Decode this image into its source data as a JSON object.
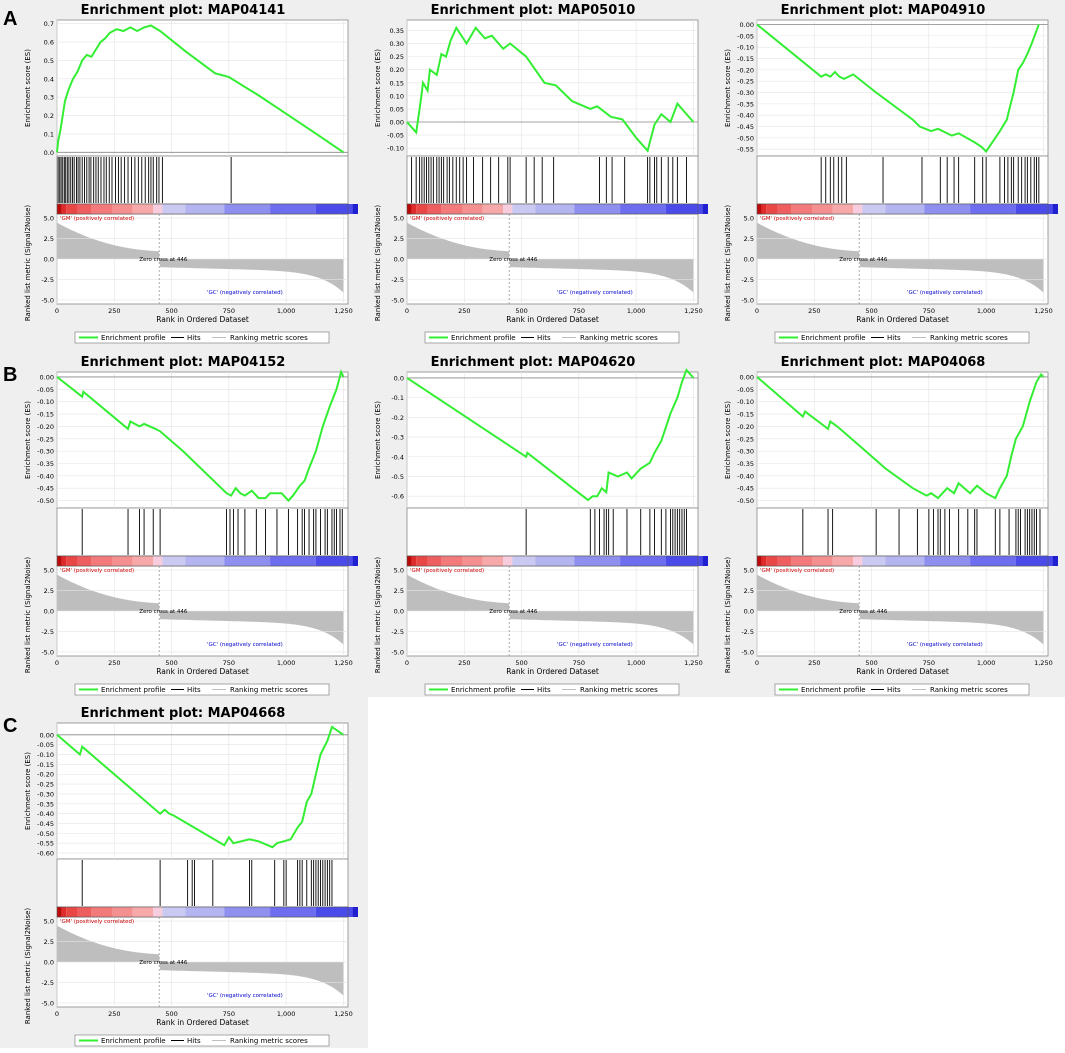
{
  "panel_letters": [
    "A",
    "B",
    "C"
  ],
  "common": {
    "es_ylabel": "Enrichment score (ES)",
    "metric_ylabel": "Ranked list metric (Signal2Noise)",
    "xlabel": "Rank in Ordered Dataset",
    "x_ticks": [
      "0",
      "250",
      "500",
      "750",
      "1,000",
      "1,250"
    ],
    "x_tick_values": [
      0,
      250,
      500,
      750,
      1000,
      1250
    ],
    "x_range": [
      0,
      1270
    ],
    "metric_ticks": [
      "5.0",
      "2.5",
      "0.0",
      "-2.5",
      "-5.0"
    ],
    "metric_tick_values": [
      5,
      2.5,
      0,
      -2.5,
      -5
    ],
    "metric_range": [
      -5.5,
      5.5
    ],
    "zero_cross_text": "Zero cross at 446",
    "zero_cross": 446,
    "pos_label": "'GM' (positively correlated)",
    "neg_label": "'GC' (negatively correlated)",
    "legend": [
      "Enrichment profile",
      "Hits",
      "Ranking metric scores"
    ],
    "colors": {
      "profile": "#33ee33",
      "hits": "#000000",
      "metric": "#bebebe",
      "pos": "#cc0000",
      "neg": "#0000cc"
    },
    "heat_colors": [
      "#ba0a0a",
      "#e02b2b",
      "#e94646",
      "#ef5e5e",
      "#f27a7a",
      "#f49090",
      "#f7a9a9",
      "#f7cdde",
      "#c9c9f2",
      "#b4b4f0",
      "#8f8ff0",
      "#6d6df0",
      "#4b4bea",
      "#2020d0",
      "#3b0099"
    ],
    "heat_stops": [
      0,
      20,
      40,
      90,
      150,
      240,
      330,
      420,
      460,
      560,
      730,
      930,
      1130,
      1290,
      1330,
      1370
    ]
  },
  "chart_data": [
    {
      "type": "line",
      "title": "Enrichment plot: MAP04141",
      "es_ticks": [
        0,
        0.1,
        0.2,
        0.3,
        0.4,
        0.5,
        0.6,
        0.7
      ],
      "es_ticklabels": [
        "0.0",
        "0.1",
        "0.2",
        "0.3",
        "0.4",
        "0.5",
        "0.6",
        "0.7"
      ],
      "es_range": [
        -0.02,
        0.72
      ],
      "es_curve": [
        [
          0,
          0
        ],
        [
          5,
          0.06
        ],
        [
          15,
          0.12
        ],
        [
          25,
          0.2
        ],
        [
          35,
          0.28
        ],
        [
          50,
          0.34
        ],
        [
          70,
          0.4
        ],
        [
          90,
          0.44
        ],
        [
          110,
          0.5
        ],
        [
          130,
          0.53
        ],
        [
          150,
          0.52
        ],
        [
          170,
          0.56
        ],
        [
          190,
          0.6
        ],
        [
          210,
          0.62
        ],
        [
          230,
          0.65
        ],
        [
          260,
          0.67
        ],
        [
          290,
          0.66
        ],
        [
          320,
          0.68
        ],
        [
          350,
          0.66
        ],
        [
          380,
          0.68
        ],
        [
          410,
          0.69
        ],
        [
          450,
          0.66
        ],
        [
          560,
          0.55
        ],
        [
          690,
          0.43
        ],
        [
          720,
          0.42
        ],
        [
          750,
          0.41
        ],
        [
          880,
          0.31
        ],
        [
          1000,
          0.21
        ],
        [
          1120,
          0.11
        ],
        [
          1250,
          0
        ]
      ],
      "hits": [
        5,
        12,
        18,
        25,
        32,
        38,
        45,
        52,
        60,
        68,
        75,
        85,
        92,
        100,
        110,
        120,
        130,
        140,
        148,
        160,
        170,
        180,
        192,
        205,
        215,
        228,
        240,
        255,
        268,
        280,
        295,
        310,
        325,
        340,
        355,
        370,
        385,
        400,
        410,
        420,
        435,
        445,
        460,
        760
      ]
    },
    {
      "type": "line",
      "title": "Enrichment plot: MAP05010",
      "es_ticks": [
        -0.1,
        -0.05,
        0,
        0.05,
        0.1,
        0.15,
        0.2,
        0.25,
        0.3,
        0.35
      ],
      "es_ticklabels": [
        "-0.10",
        "-0.05",
        "0.00",
        "0.05",
        "0.10",
        "0.15",
        "0.20",
        "0.25",
        "0.30",
        "0.35"
      ],
      "es_range": [
        -0.13,
        0.39
      ],
      "es_curve": [
        [
          0,
          0
        ],
        [
          40,
          -0.04
        ],
        [
          60,
          0.08
        ],
        [
          70,
          0.15
        ],
        [
          90,
          0.12
        ],
        [
          100,
          0.2
        ],
        [
          130,
          0.18
        ],
        [
          150,
          0.26
        ],
        [
          170,
          0.25
        ],
        [
          190,
          0.31
        ],
        [
          215,
          0.36
        ],
        [
          260,
          0.3
        ],
        [
          300,
          0.36
        ],
        [
          340,
          0.32
        ],
        [
          370,
          0.33
        ],
        [
          420,
          0.28
        ],
        [
          450,
          0.3
        ],
        [
          520,
          0.25
        ],
        [
          600,
          0.15
        ],
        [
          650,
          0.14
        ],
        [
          720,
          0.08
        ],
        [
          800,
          0.05
        ],
        [
          830,
          0.06
        ],
        [
          890,
          0.02
        ],
        [
          940,
          0.01
        ],
        [
          1000,
          -0.06
        ],
        [
          1050,
          -0.11
        ],
        [
          1080,
          -0.01
        ],
        [
          1110,
          0.03
        ],
        [
          1150,
          0.0
        ],
        [
          1180,
          0.07
        ],
        [
          1250,
          0
        ]
      ],
      "hits": [
        20,
        40,
        55,
        65,
        75,
        85,
        95,
        105,
        115,
        130,
        140,
        150,
        160,
        175,
        185,
        200,
        215,
        230,
        245,
        260,
        290,
        330,
        365,
        400,
        440,
        450,
        520,
        555,
        590,
        640,
        840,
        870,
        895,
        950,
        1050,
        1060,
        1080,
        1090,
        1110,
        1140,
        1160,
        1180,
        1220
      ]
    },
    {
      "type": "line",
      "title": "Enrichment plot: MAP04910",
      "es_ticks": [
        0,
        -0.05,
        -0.1,
        -0.15,
        -0.2,
        -0.25,
        -0.3,
        -0.35,
        -0.4,
        -0.45,
        -0.5,
        -0.55
      ],
      "es_ticklabels": [
        "0.00",
        "-0.05",
        "-0.10",
        "-0.15",
        "-0.20",
        "-0.25",
        "-0.30",
        "-0.35",
        "-0.40",
        "-0.45",
        "-0.50",
        "-0.55"
      ],
      "es_range": [
        -0.58,
        0.02
      ],
      "es_curve": [
        [
          0,
          0
        ],
        [
          280,
          -0.23
        ],
        [
          300,
          -0.22
        ],
        [
          320,
          -0.23
        ],
        [
          340,
          -0.21
        ],
        [
          360,
          -0.23
        ],
        [
          380,
          -0.24
        ],
        [
          420,
          -0.22
        ],
        [
          520,
          -0.3
        ],
        [
          680,
          -0.42
        ],
        [
          710,
          -0.45
        ],
        [
          760,
          -0.47
        ],
        [
          790,
          -0.46
        ],
        [
          850,
          -0.49
        ],
        [
          880,
          -0.48
        ],
        [
          950,
          -0.52
        ],
        [
          980,
          -0.54
        ],
        [
          1000,
          -0.56
        ],
        [
          1020,
          -0.53
        ],
        [
          1040,
          -0.5
        ],
        [
          1060,
          -0.47
        ],
        [
          1090,
          -0.42
        ],
        [
          1100,
          -0.38
        ],
        [
          1120,
          -0.3
        ],
        [
          1140,
          -0.2
        ],
        [
          1160,
          -0.17
        ],
        [
          1180,
          -0.13
        ],
        [
          1200,
          -0.08
        ],
        [
          1215,
          -0.04
        ],
        [
          1230,
          0
        ]
      ],
      "hits": [
        280,
        300,
        320,
        335,
        355,
        370,
        390,
        550,
        720,
        800,
        830,
        860,
        880,
        950,
        985,
        1000,
        1060,
        1080,
        1095,
        1110,
        1120,
        1140,
        1155,
        1170,
        1180,
        1195,
        1210,
        1220,
        1230
      ]
    },
    {
      "type": "line",
      "title": "Enrichment plot: MAP04152",
      "es_ticks": [
        0,
        -0.05,
        -0.1,
        -0.15,
        -0.2,
        -0.25,
        -0.3,
        -0.35,
        -0.4,
        -0.45,
        -0.5
      ],
      "es_ticklabels": [
        "0.00",
        "-0.05",
        "-0.10",
        "-0.15",
        "-0.20",
        "-0.25",
        "-0.30",
        "-0.35",
        "-0.40",
        "-0.45",
        "-0.50"
      ],
      "es_range": [
        -0.53,
        0.02
      ],
      "es_curve": [
        [
          0,
          0
        ],
        [
          110,
          -0.08
        ],
        [
          115,
          -0.06
        ],
        [
          310,
          -0.21
        ],
        [
          320,
          -0.18
        ],
        [
          360,
          -0.2
        ],
        [
          380,
          -0.19
        ],
        [
          430,
          -0.21
        ],
        [
          450,
          -0.22
        ],
        [
          550,
          -0.3
        ],
        [
          740,
          -0.47
        ],
        [
          760,
          -0.48
        ],
        [
          780,
          -0.45
        ],
        [
          800,
          -0.47
        ],
        [
          820,
          -0.48
        ],
        [
          850,
          -0.46
        ],
        [
          880,
          -0.49
        ],
        [
          910,
          -0.49
        ],
        [
          930,
          -0.47
        ],
        [
          980,
          -0.47
        ],
        [
          1010,
          -0.5
        ],
        [
          1030,
          -0.48
        ],
        [
          1060,
          -0.44
        ],
        [
          1080,
          -0.42
        ],
        [
          1100,
          -0.37
        ],
        [
          1130,
          -0.3
        ],
        [
          1160,
          -0.2
        ],
        [
          1190,
          -0.12
        ],
        [
          1220,
          -0.05
        ],
        [
          1240,
          0.02
        ],
        [
          1250,
          0
        ]
      ],
      "hits": [
        110,
        310,
        360,
        380,
        420,
        450,
        740,
        755,
        770,
        790,
        820,
        870,
        910,
        960,
        1010,
        1050,
        1070,
        1080,
        1100,
        1120,
        1130,
        1150,
        1170,
        1180,
        1200,
        1210,
        1220,
        1235,
        1245
      ]
    },
    {
      "type": "line",
      "title": "Enrichment plot: MAP04620",
      "es_ticks": [
        0,
        -0.1,
        -0.2,
        -0.3,
        -0.4,
        -0.5,
        -0.6
      ],
      "es_ticklabels": [
        "0.0",
        "-0.1",
        "-0.2",
        "-0.3",
        "-0.4",
        "-0.5",
        "-0.6"
      ],
      "es_range": [
        -0.66,
        0.03
      ],
      "es_curve": [
        [
          0,
          0
        ],
        [
          520,
          -0.4
        ],
        [
          525,
          -0.38
        ],
        [
          790,
          -0.62
        ],
        [
          810,
          -0.6
        ],
        [
          830,
          -0.6
        ],
        [
          850,
          -0.56
        ],
        [
          870,
          -0.58
        ],
        [
          880,
          -0.48
        ],
        [
          920,
          -0.5
        ],
        [
          960,
          -0.48
        ],
        [
          980,
          -0.51
        ],
        [
          1020,
          -0.46
        ],
        [
          1060,
          -0.43
        ],
        [
          1080,
          -0.38
        ],
        [
          1110,
          -0.32
        ],
        [
          1130,
          -0.25
        ],
        [
          1150,
          -0.18
        ],
        [
          1180,
          -0.1
        ],
        [
          1200,
          -0.02
        ],
        [
          1220,
          0.04
        ],
        [
          1250,
          0
        ]
      ],
      "hits": [
        520,
        800,
        820,
        840,
        860,
        870,
        880,
        900,
        960,
        1020,
        1060,
        1080,
        1110,
        1130,
        1150,
        1160,
        1170,
        1180,
        1190,
        1200,
        1210,
        1220
      ]
    },
    {
      "type": "line",
      "title": "Enrichment plot: MAP04068",
      "es_ticks": [
        0,
        -0.05,
        -0.1,
        -0.15,
        -0.2,
        -0.25,
        -0.3,
        -0.35,
        -0.4,
        -0.45,
        -0.5
      ],
      "es_ticklabels": [
        "0.00",
        "-0.05",
        "-0.10",
        "-0.15",
        "-0.20",
        "-0.25",
        "-0.30",
        "-0.35",
        "-0.40",
        "-0.45",
        "-0.50"
      ],
      "es_range": [
        -0.53,
        0.02
      ],
      "es_curve": [
        [
          0,
          0
        ],
        [
          200,
          -0.16
        ],
        [
          210,
          -0.14
        ],
        [
          310,
          -0.21
        ],
        [
          320,
          -0.18
        ],
        [
          350,
          -0.2
        ],
        [
          450,
          -0.28
        ],
        [
          560,
          -0.37
        ],
        [
          680,
          -0.45
        ],
        [
          740,
          -0.48
        ],
        [
          760,
          -0.47
        ],
        [
          790,
          -0.49
        ],
        [
          830,
          -0.45
        ],
        [
          860,
          -0.47
        ],
        [
          880,
          -0.43
        ],
        [
          930,
          -0.47
        ],
        [
          960,
          -0.44
        ],
        [
          1000,
          -0.47
        ],
        [
          1040,
          -0.49
        ],
        [
          1060,
          -0.45
        ],
        [
          1090,
          -0.4
        ],
        [
          1110,
          -0.32
        ],
        [
          1130,
          -0.25
        ],
        [
          1160,
          -0.2
        ],
        [
          1190,
          -0.1
        ],
        [
          1220,
          -0.02
        ],
        [
          1240,
          0.01
        ],
        [
          1250,
          0
        ]
      ],
      "hits": [
        200,
        310,
        330,
        520,
        620,
        700,
        750,
        770,
        790,
        800,
        820,
        840,
        880,
        920,
        950,
        960,
        1040,
        1060,
        1100,
        1130,
        1140,
        1150,
        1170,
        1180,
        1190,
        1200,
        1210,
        1220,
        1235
      ]
    },
    {
      "type": "line",
      "title": "Enrichment plot: MAP04668",
      "es_ticks": [
        0,
        -0.05,
        -0.1,
        -0.15,
        -0.2,
        -0.25,
        -0.3,
        -0.35,
        -0.4,
        -0.45,
        -0.5,
        -0.55,
        -0.6
      ],
      "es_ticklabels": [
        "0.00",
        "-0.05",
        "-0.10",
        "-0.15",
        "-0.20",
        "-0.25",
        "-0.30",
        "-0.35",
        "-0.40",
        "-0.45",
        "-0.50",
        "-0.55",
        "-0.60"
      ],
      "es_range": [
        -0.63,
        0.06
      ],
      "es_curve": [
        [
          0,
          0
        ],
        [
          100,
          -0.1
        ],
        [
          110,
          -0.06
        ],
        [
          450,
          -0.4
        ],
        [
          470,
          -0.38
        ],
        [
          490,
          -0.4
        ],
        [
          510,
          -0.41
        ],
        [
          730,
          -0.56
        ],
        [
          750,
          -0.52
        ],
        [
          770,
          -0.55
        ],
        [
          840,
          -0.53
        ],
        [
          880,
          -0.54
        ],
        [
          940,
          -0.57
        ],
        [
          960,
          -0.55
        ],
        [
          990,
          -0.54
        ],
        [
          1020,
          -0.53
        ],
        [
          1050,
          -0.47
        ],
        [
          1070,
          -0.44
        ],
        [
          1090,
          -0.34
        ],
        [
          1110,
          -0.3
        ],
        [
          1130,
          -0.2
        ],
        [
          1150,
          -0.1
        ],
        [
          1180,
          -0.03
        ],
        [
          1200,
          0.04
        ],
        [
          1250,
          0
        ]
      ],
      "hits": [
        110,
        450,
        570,
        590,
        600,
        680,
        840,
        850,
        950,
        990,
        1000,
        1050,
        1060,
        1070,
        1090,
        1110,
        1120,
        1130,
        1140,
        1150,
        1160,
        1170,
        1180,
        1190,
        1200
      ]
    }
  ]
}
